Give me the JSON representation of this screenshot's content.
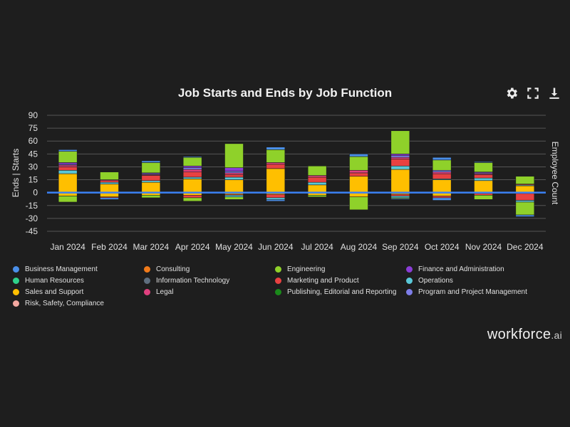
{
  "chart_data": {
    "type": "bar",
    "stacked": true,
    "title": "Job Starts and Ends by Job Function",
    "ylabel_left": "Ends | Starts",
    "ylabel_right": "Employee Count",
    "ylim": [
      -45,
      90
    ],
    "yticks": [
      90,
      75,
      60,
      45,
      30,
      15,
      0,
      -15,
      -30,
      -45
    ],
    "categories": [
      "Jan 2024",
      "Feb 2024",
      "Mar 2024",
      "Apr 2024",
      "May 2024",
      "Jun 2024",
      "Jul 2024",
      "Aug 2024",
      "Sep 2024",
      "Oct 2024",
      "Nov 2024",
      "Dec 2024"
    ],
    "series": [
      {
        "name": "Sales and Support",
        "color": "#ffbf00",
        "values": [
          22,
          10,
          12,
          16,
          15,
          28,
          9,
          19,
          27,
          15,
          14,
          8
        ]
      },
      {
        "name": "Operations",
        "color": "#5ac8d8",
        "values": [
          4,
          2,
          2,
          2,
          3,
          0,
          3,
          0,
          4,
          1,
          3,
          1
        ]
      },
      {
        "name": "Marketing and Product",
        "color": "#e84141",
        "values": [
          4,
          2,
          6,
          6,
          3,
          5,
          6,
          4,
          8,
          6,
          4,
          1
        ]
      },
      {
        "name": "Legal",
        "color": "#e0407f",
        "values": [
          2,
          1,
          1,
          3,
          2,
          2,
          2,
          3,
          2,
          2,
          1,
          0
        ]
      },
      {
        "name": "Program and Project Management",
        "color": "#7d7de8",
        "values": [
          1,
          0,
          1,
          2,
          2,
          0,
          0,
          0,
          2,
          2,
          1,
          0
        ]
      },
      {
        "name": "Finance and Administration",
        "color": "#8a3dd6",
        "values": [
          2,
          0,
          1,
          2,
          4,
          0,
          0,
          0,
          2,
          0,
          1,
          0
        ]
      },
      {
        "name": "Engineering",
        "color": "#8fd12a",
        "values": [
          13,
          9,
          12,
          10,
          28,
          15,
          11,
          16,
          27,
          12,
          11,
          9
        ]
      },
      {
        "name": "Business Management",
        "color": "#4a8fe8",
        "values": [
          2,
          0,
          2,
          1,
          0,
          3,
          0,
          3,
          0,
          3,
          1,
          0
        ]
      }
    ],
    "ends_series": [
      {
        "name": "Sales and Support",
        "color": "#ffbf00",
        "values": [
          -4,
          -5,
          -3,
          -3,
          -2,
          -2,
          -3,
          -5,
          -2,
          -4,
          -1,
          -1
        ]
      },
      {
        "name": "Marketing and Product",
        "color": "#e84141",
        "values": [
          0,
          -1,
          0,
          -3,
          -1,
          -4,
          0,
          0,
          -2,
          -2,
          -2,
          -8
        ]
      },
      {
        "name": "Operations",
        "color": "#5ac8d8",
        "values": [
          0,
          0,
          0,
          0,
          -2,
          -2,
          0,
          0,
          -2,
          0,
          0,
          -2
        ]
      },
      {
        "name": "Engineering",
        "color": "#8fd12a",
        "values": [
          -7,
          0,
          -3,
          -4,
          -3,
          0,
          -2,
          -15,
          -1,
          0,
          -5,
          -15
        ]
      },
      {
        "name": "Business Management",
        "color": "#4a8fe8",
        "values": [
          0,
          -2,
          0,
          0,
          0,
          -2,
          0,
          0,
          -1,
          -3,
          0,
          -2
        ]
      }
    ]
  },
  "toolbar": {
    "settings_icon": "gear-icon",
    "fullscreen_icon": "fullscreen-icon",
    "download_icon": "download-icon"
  },
  "legend": {
    "items": [
      {
        "label": "Business Management",
        "color": "#4a8fe8"
      },
      {
        "label": "Consulting",
        "color": "#f07a1a"
      },
      {
        "label": "Engineering",
        "color": "#8fd12a"
      },
      {
        "label": "Finance and Administration",
        "color": "#8a3dd6"
      },
      {
        "label": "Human Resources",
        "color": "#2fd18a"
      },
      {
        "label": "Information Technology",
        "color": "#5f6f7f"
      },
      {
        "label": "Marketing and Product",
        "color": "#e84141"
      },
      {
        "label": "Operations",
        "color": "#5ac8d8"
      },
      {
        "label": "Sales and Support",
        "color": "#ffbf00"
      },
      {
        "label": "Legal",
        "color": "#e0407f"
      },
      {
        "label": "Publishing, Editorial and Reporting",
        "color": "#1a8a1a"
      },
      {
        "label": "Program and Project Management",
        "color": "#7d7de8"
      },
      {
        "label": "Risk, Safety, Compliance",
        "color": "#f4a8a0"
      }
    ]
  },
  "brand": {
    "name": "workforce",
    "suffix": ".ai"
  },
  "colors": {
    "zero_line": "#3b82f6",
    "grid": "#555555",
    "background": "#1e1e1e"
  }
}
